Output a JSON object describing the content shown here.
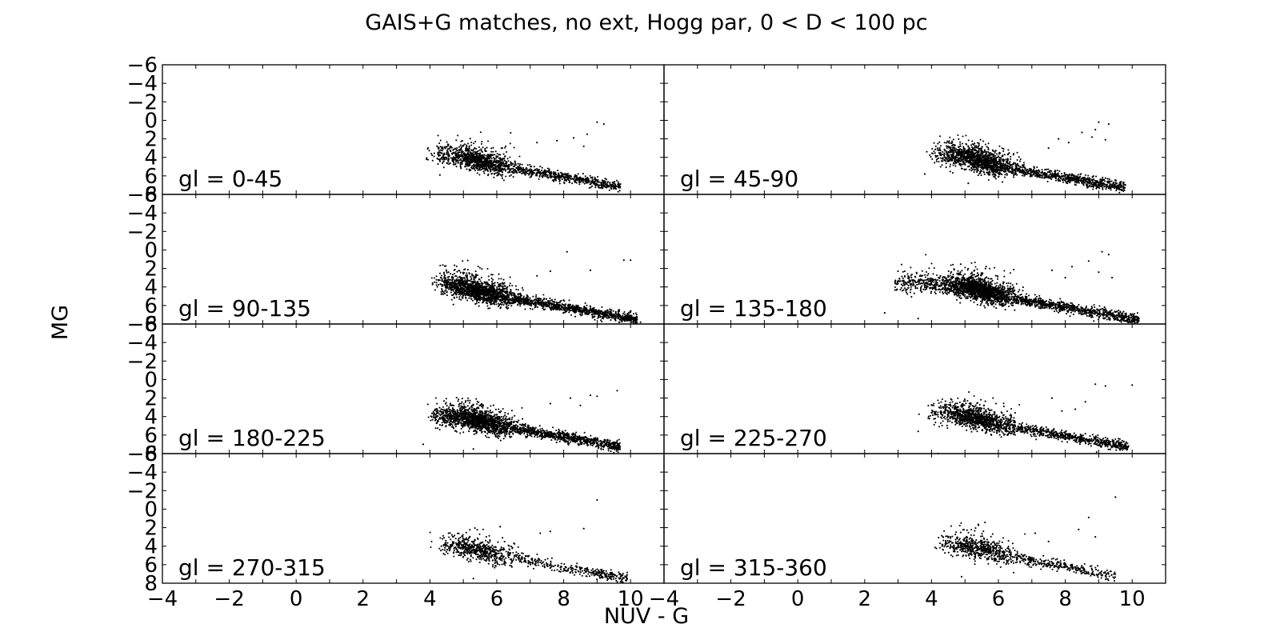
{
  "chart_data": {
    "type": "scatter",
    "title": "GAIS+G matches, no ext, Hogg par, 0 < D < 100 pc",
    "xlabel": "NUV - G",
    "ylabel": "MG",
    "xlim": [
      -4,
      11
    ],
    "ylim": [
      8,
      -6
    ],
    "y_inverted": true,
    "grid": false,
    "layout": "4 rows x 2 columns, shared axes",
    "x_tick_labels": [
      "−4",
      "−2",
      "0",
      "2",
      "4",
      "6",
      "8",
      "10"
    ],
    "y_tick_labels": [
      "−6",
      "−4",
      "−2",
      "0",
      "2",
      "4",
      "6",
      "8"
    ],
    "marker_color": "#000000",
    "panels": [
      {
        "label": "gl = 0-45",
        "n_points": 1600,
        "color_range": [
          3.9,
          9.8
        ],
        "ridge": [
          [
            4.0,
            3.7
          ],
          [
            5.0,
            4.0
          ],
          [
            6.0,
            4.9
          ],
          [
            7.0,
            5.5
          ],
          [
            8.0,
            6.1
          ],
          [
            9.0,
            6.8
          ],
          [
            9.8,
            7.3
          ]
        ],
        "outliers": [
          [
            9.0,
            0.2
          ],
          [
            9.2,
            0.4
          ],
          [
            8.3,
            1.9
          ],
          [
            7.8,
            2.2
          ],
          [
            8.7,
            1.5
          ],
          [
            7.2,
            2.4
          ],
          [
            8.6,
            2.8
          ],
          [
            3.9,
            4.2
          ],
          [
            4.3,
            5.9
          ]
        ]
      },
      {
        "label": "gl = 45-90",
        "n_points": 2000,
        "color_range": [
          3.8,
          9.9
        ],
        "ridge": [
          [
            4.0,
            3.6
          ],
          [
            5.0,
            4.0
          ],
          [
            6.0,
            4.9
          ],
          [
            7.0,
            5.6
          ],
          [
            8.0,
            6.2
          ],
          [
            9.0,
            6.8
          ],
          [
            9.9,
            7.3
          ]
        ],
        "outliers": [
          [
            9.0,
            0.2
          ],
          [
            9.3,
            0.4
          ],
          [
            8.5,
            1.3
          ],
          [
            8.9,
            1.0
          ],
          [
            7.8,
            2.0
          ],
          [
            8.1,
            2.4
          ],
          [
            7.5,
            3.0
          ],
          [
            9.2,
            2.1
          ],
          [
            3.8,
            5.8
          ],
          [
            5.1,
            6.8
          ],
          [
            8.8,
            1.8
          ]
        ]
      },
      {
        "label": "gl = 90-135",
        "n_points": 2400,
        "color_range": [
          4.0,
          10.3
        ],
        "ridge": [
          [
            4.0,
            3.6
          ],
          [
            5.0,
            4.1
          ],
          [
            6.0,
            5.0
          ],
          [
            7.0,
            5.6
          ],
          [
            8.0,
            6.2
          ],
          [
            9.0,
            6.8
          ],
          [
            10.0,
            7.4
          ]
        ],
        "outliers": [
          [
            9.8,
            1.1
          ],
          [
            10.0,
            1.1
          ],
          [
            8.1,
            0.2
          ],
          [
            7.6,
            2.3
          ],
          [
            8.8,
            2.2
          ],
          [
            7.2,
            2.8
          ],
          [
            4.7,
            5.9
          ],
          [
            10.3,
            7.8
          ],
          [
            10.0,
            6.6
          ]
        ]
      },
      {
        "label": "gl = 135-180",
        "n_points": 2700,
        "color_range": [
          2.6,
          10.3
        ],
        "ridge": [
          [
            4.0,
            3.6
          ],
          [
            5.0,
            4.0
          ],
          [
            6.0,
            4.9
          ],
          [
            7.0,
            5.6
          ],
          [
            8.0,
            6.2
          ],
          [
            9.0,
            6.8
          ],
          [
            10.0,
            7.4
          ]
        ],
        "outliers": [
          [
            9.1,
            0.2
          ],
          [
            9.3,
            0.5
          ],
          [
            8.7,
            1.2
          ],
          [
            8.2,
            1.8
          ],
          [
            7.6,
            2.2
          ],
          [
            9.0,
            2.4
          ],
          [
            8.0,
            3.0
          ],
          [
            2.6,
            6.8
          ],
          [
            3.6,
            7.4
          ],
          [
            10.2,
            7.4
          ],
          [
            9.4,
            3.0
          ]
        ]
      },
      {
        "label": "gl = 180-225",
        "n_points": 2300,
        "color_range": [
          3.8,
          9.8
        ],
        "ridge": [
          [
            4.0,
            3.8
          ],
          [
            5.0,
            4.1
          ],
          [
            6.0,
            5.0
          ],
          [
            7.0,
            5.6
          ],
          [
            8.0,
            6.2
          ],
          [
            9.0,
            6.8
          ],
          [
            9.8,
            7.3
          ]
        ],
        "outliers": [
          [
            9.0,
            1.8
          ],
          [
            8.8,
            1.7
          ],
          [
            9.6,
            1.2
          ],
          [
            8.2,
            2.0
          ],
          [
            7.6,
            2.6
          ],
          [
            3.8,
            7.0
          ],
          [
            5.3,
            7.5
          ],
          [
            8.5,
            2.8
          ]
        ]
      },
      {
        "label": "gl = 225-270",
        "n_points": 1700,
        "color_range": [
          3.6,
          10.0
        ],
        "ridge": [
          [
            4.2,
            3.6
          ],
          [
            5.0,
            3.9
          ],
          [
            6.0,
            4.9
          ],
          [
            7.0,
            5.5
          ],
          [
            8.0,
            6.1
          ],
          [
            9.0,
            6.8
          ],
          [
            9.6,
            7.1
          ]
        ],
        "outliers": [
          [
            8.9,
            0.5
          ],
          [
            9.2,
            0.7
          ],
          [
            10.0,
            0.6
          ],
          [
            8.6,
            2.4
          ],
          [
            8.3,
            3.2
          ],
          [
            7.6,
            2.0
          ],
          [
            3.6,
            5.6
          ],
          [
            4.2,
            8.0
          ],
          [
            7.9,
            3.4
          ]
        ]
      },
      {
        "label": "gl = 270-315",
        "n_points": 900,
        "color_range": [
          4.0,
          10.0
        ],
        "ridge": [
          [
            4.0,
            3.7
          ],
          [
            5.0,
            4.1
          ],
          [
            6.0,
            5.0
          ],
          [
            7.0,
            5.6
          ],
          [
            8.0,
            6.3
          ],
          [
            9.0,
            6.9
          ]
        ],
        "outliers": [
          [
            9.0,
            -1.0
          ],
          [
            7.6,
            2.4
          ],
          [
            7.3,
            2.6
          ],
          [
            8.6,
            2.1
          ],
          [
            5.3,
            7.5
          ],
          [
            6.1,
            1.9
          ],
          [
            9.9,
            7.5
          ]
        ]
      },
      {
        "label": "gl = 315-360",
        "n_points": 900,
        "color_range": [
          4.0,
          9.6
        ],
        "ridge": [
          [
            4.0,
            3.6
          ],
          [
            5.0,
            4.0
          ],
          [
            6.0,
            4.8
          ],
          [
            7.0,
            5.6
          ],
          [
            8.0,
            6.2
          ],
          [
            9.0,
            6.9
          ]
        ],
        "outliers": [
          [
            9.5,
            -1.3
          ],
          [
            8.7,
            0.9
          ],
          [
            8.4,
            2.2
          ],
          [
            7.5,
            3.5
          ],
          [
            7.1,
            2.6
          ],
          [
            4.9,
            7.3
          ],
          [
            8.9,
            3.0
          ]
        ]
      }
    ]
  }
}
